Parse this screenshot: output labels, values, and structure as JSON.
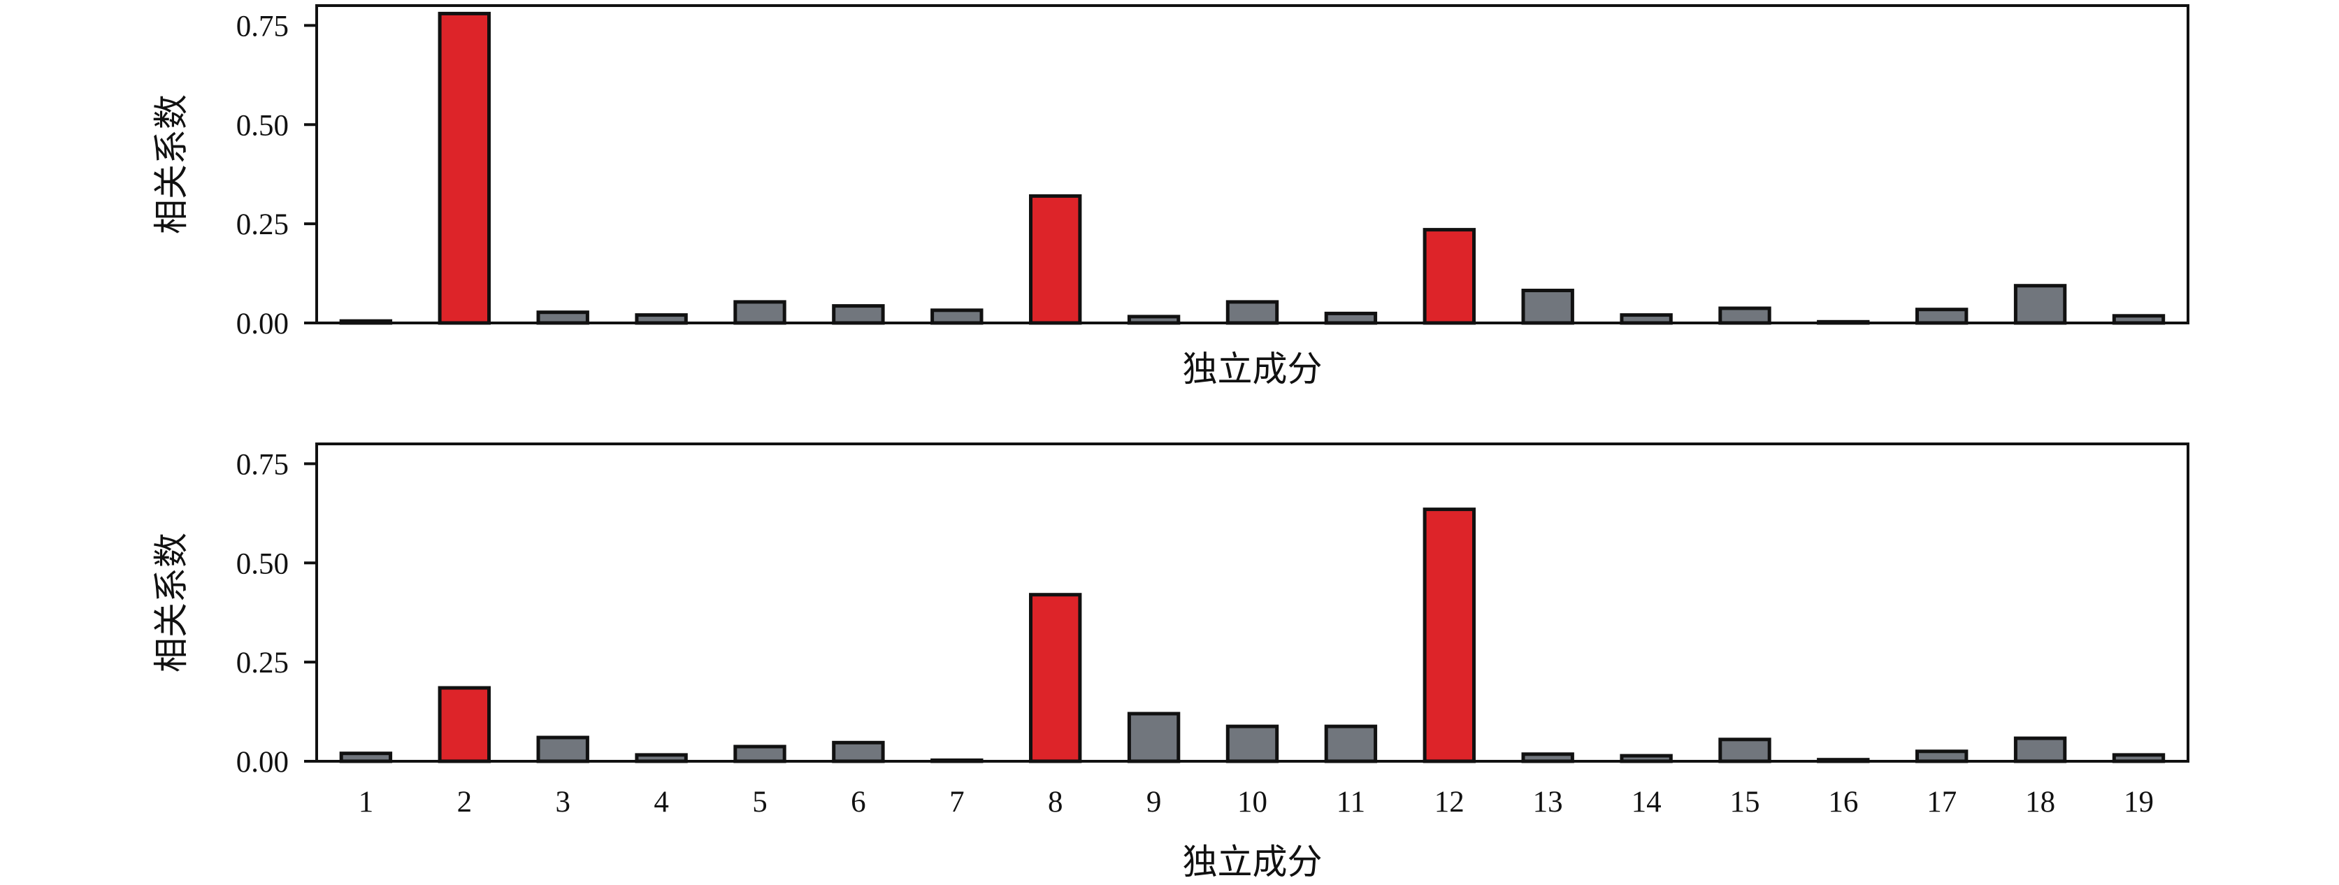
{
  "colors": {
    "highlight": "#dd2429",
    "normal": "#71767d",
    "stroke": "#111111"
  },
  "chart_data": [
    {
      "type": "bar",
      "categories": [
        "1",
        "2",
        "3",
        "4",
        "5",
        "6",
        "7",
        "8",
        "9",
        "10",
        "11",
        "12",
        "13",
        "14",
        "15",
        "16",
        "17",
        "18",
        "19"
      ],
      "values": [
        0.005,
        0.78,
        0.027,
        0.02,
        0.053,
        0.043,
        0.032,
        0.32,
        0.016,
        0.053,
        0.024,
        0.235,
        0.082,
        0.02,
        0.037,
        0.003,
        0.034,
        0.094,
        0.018
      ],
      "highlighted": [
        "2",
        "8",
        "12"
      ],
      "title": "",
      "xlabel": "独立成分",
      "ylabel": "相关系数",
      "ylim": [
        0,
        0.8
      ],
      "yticks": [
        "0.00",
        "0.25",
        "0.50",
        "0.75"
      ],
      "show_xtick_labels": false,
      "grid": false
    },
    {
      "type": "bar",
      "categories": [
        "1",
        "2",
        "3",
        "4",
        "5",
        "6",
        "7",
        "8",
        "9",
        "10",
        "11",
        "12",
        "13",
        "14",
        "15",
        "16",
        "17",
        "18",
        "19"
      ],
      "values": [
        0.02,
        0.185,
        0.06,
        0.016,
        0.037,
        0.047,
        0.002,
        0.42,
        0.12,
        0.088,
        0.088,
        0.635,
        0.018,
        0.014,
        0.055,
        0.004,
        0.025,
        0.058,
        0.016
      ],
      "highlighted": [
        "2",
        "8",
        "12"
      ],
      "title": "",
      "xlabel": "独立成分",
      "ylabel": "相关系数",
      "ylim": [
        0,
        0.8
      ],
      "yticks": [
        "0.00",
        "0.25",
        "0.50",
        "0.75"
      ],
      "show_xtick_labels": true,
      "grid": false
    }
  ]
}
